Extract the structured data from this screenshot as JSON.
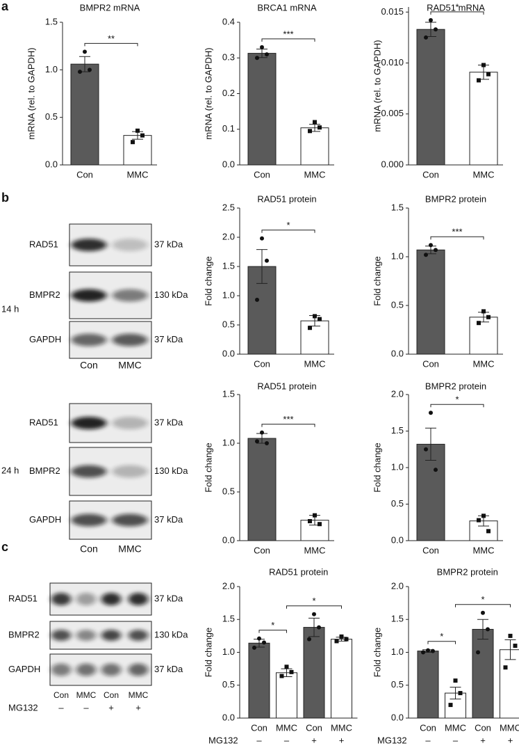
{
  "panel_labels": [
    "a",
    "b",
    "c"
  ],
  "blots": [
    {
      "time": "14 h",
      "lanes": [
        "Con",
        "MMC"
      ],
      "rows": [
        {
          "protein": "RAD51",
          "size": "37 kDa"
        },
        {
          "protein": "BMPR2",
          "size": "130 kDa"
        },
        {
          "protein": "GAPDH",
          "size": "37 kDa"
        }
      ]
    },
    {
      "time": "24 h",
      "lanes": [
        "Con",
        "MMC"
      ],
      "rows": [
        {
          "protein": "RAD51",
          "size": "37 kDa"
        },
        {
          "protein": "BMPR2",
          "size": "130 kDa"
        },
        {
          "protein": "GAPDH",
          "size": "37 kDa"
        }
      ]
    },
    {
      "lanes": [
        "Con",
        "MMC",
        "Con",
        "MMC"
      ],
      "treatment": {
        "label": "MG132",
        "values": [
          "–",
          "–",
          "+",
          "+"
        ]
      },
      "rows": [
        {
          "protein": "RAD51",
          "size": "37 kDa"
        },
        {
          "protein": "BMPR2",
          "size": "130 kDa"
        },
        {
          "protein": "GAPDH",
          "size": "37 kDa"
        }
      ]
    }
  ],
  "chart_data": [
    {
      "type": "bar",
      "title": "BMPR2 mRNA",
      "ylabel": "mRNA (rel. to GAPDH)",
      "categories": [
        "Con",
        "MMC"
      ],
      "values": [
        1.06,
        0.31
      ],
      "errors": [
        0.08,
        0.04
      ],
      "points": [
        [
          0.98,
          1.19,
          1.0
        ],
        [
          0.24,
          0.36,
          0.31
        ]
      ],
      "colors": [
        "#5a5a5a",
        "#ffffff"
      ],
      "markers": [
        "circle",
        "square"
      ],
      "ylim": [
        0,
        1.5
      ],
      "yticks": [
        {
          "value": 0,
          "label": "0.0"
        },
        0.5,
        {
          "value": 1,
          "label": "1.0"
        },
        1.5
      ],
      "significance": [
        {
          "from": 0,
          "to": 1,
          "label": "**"
        }
      ]
    },
    {
      "type": "bar",
      "title": "BRCA1 mRNA",
      "ylabel": "mRNA (rel. to GAPDH)",
      "categories": [
        "Con",
        "MMC"
      ],
      "values": [
        0.313,
        0.104
      ],
      "errors": [
        0.012,
        0.01
      ],
      "points": [
        [
          0.3,
          0.33,
          0.31
        ],
        [
          0.095,
          0.12,
          0.105
        ]
      ],
      "colors": [
        "#5a5a5a",
        "#ffffff"
      ],
      "markers": [
        "circle",
        "square"
      ],
      "ylim": [
        0,
        0.4
      ],
      "yticks": [
        {
          "value": 0,
          "label": "0.0"
        },
        0.1,
        0.2,
        0.3,
        0.4
      ],
      "significance": [
        {
          "from": 0,
          "to": 1,
          "label": "***"
        }
      ]
    },
    {
      "type": "bar",
      "title": "RAD51 mRNA",
      "ylabel": "mRNA (rel. to GAPDH)",
      "categories": [
        "Con",
        "MMC"
      ],
      "values": [
        0.0133,
        0.0091
      ],
      "errors": [
        0.0007,
        0.0007
      ],
      "points": [
        [
          0.0125,
          0.0142,
          0.0133
        ],
        [
          0.0083,
          0.0098,
          0.0089
        ]
      ],
      "colors": [
        "#5a5a5a",
        "#ffffff"
      ],
      "markers": [
        "circle",
        "square"
      ],
      "ylim": [
        0,
        0.0155
      ],
      "yticks": [
        {
          "value": 0,
          "label": "0.000"
        },
        {
          "value": 0.005,
          "label": "0.005"
        },
        {
          "value": 0.01,
          "label": "0.010"
        },
        {
          "value": 0.015,
          "label": "0.015"
        }
      ],
      "significance": [
        {
          "from": 0,
          "to": 1,
          "label": "*"
        }
      ]
    },
    {
      "type": "bar",
      "title": "RAD51 protein",
      "ylabel": "Fold change",
      "categories": [
        "Con",
        "MMC"
      ],
      "values": [
        1.5,
        0.57
      ],
      "errors": [
        0.29,
        0.09
      ],
      "points": [
        [
          0.93,
          1.98,
          1.6
        ],
        [
          0.45,
          0.65,
          0.6
        ]
      ],
      "colors": [
        "#5a5a5a",
        "#ffffff"
      ],
      "markers": [
        "circle",
        "square"
      ],
      "ylim": [
        0,
        2.5
      ],
      "yticks": [
        {
          "value": 0,
          "label": "0.0"
        },
        0.5,
        {
          "value": 1,
          "label": "1.0"
        },
        1.5,
        {
          "value": 2,
          "label": "2.0"
        },
        2.5
      ],
      "significance": [
        {
          "from": 0,
          "to": 1,
          "label": "*"
        }
      ]
    },
    {
      "type": "bar",
      "title": "BMPR2 protein",
      "ylabel": "Fold change",
      "categories": [
        "Con",
        "MMC"
      ],
      "values": [
        1.07,
        0.38
      ],
      "errors": [
        0.04,
        0.05
      ],
      "points": [
        [
          1.02,
          1.12,
          1.07
        ],
        [
          0.32,
          0.44,
          0.38
        ]
      ],
      "colors": [
        "#5a5a5a",
        "#ffffff"
      ],
      "markers": [
        "circle",
        "square"
      ],
      "ylim": [
        0,
        1.5
      ],
      "yticks": [
        {
          "value": 0,
          "label": "0.0"
        },
        0.5,
        {
          "value": 1,
          "label": "1.0"
        },
        1.5
      ],
      "significance": [
        {
          "from": 0,
          "to": 1,
          "label": "***"
        }
      ]
    },
    {
      "type": "bar",
      "title": "RAD51 protein",
      "ylabel": "Fold change",
      "categories": [
        "Con",
        "MMC"
      ],
      "values": [
        1.05,
        0.21
      ],
      "errors": [
        0.05,
        0.05
      ],
      "points": [
        [
          1.02,
          1.11,
          1.0
        ],
        [
          0.2,
          0.26,
          0.17
        ]
      ],
      "colors": [
        "#5a5a5a",
        "#ffffff"
      ],
      "markers": [
        "circle",
        "square"
      ],
      "ylim": [
        0,
        1.5
      ],
      "yticks": [
        {
          "value": 0,
          "label": "0.0"
        },
        0.5,
        {
          "value": 1,
          "label": "1.0"
        },
        1.5
      ],
      "significance": [
        {
          "from": 0,
          "to": 1,
          "label": "***"
        }
      ]
    },
    {
      "type": "bar",
      "title": "BMPR2 protein",
      "ylabel": "Fold change",
      "categories": [
        "Con",
        "MMC"
      ],
      "values": [
        1.32,
        0.27
      ],
      "errors": [
        0.22,
        0.07
      ],
      "points": [
        [
          1.25,
          1.75,
          0.97
        ],
        [
          0.28,
          0.34,
          0.13
        ]
      ],
      "colors": [
        "#5a5a5a",
        "#ffffff"
      ],
      "markers": [
        "circle",
        "square"
      ],
      "ylim": [
        0,
        2
      ],
      "yticks": [
        {
          "value": 0,
          "label": "0.0"
        },
        0.5,
        {
          "value": 1,
          "label": "1.0"
        },
        1.5,
        {
          "value": 2,
          "label": "2.0"
        }
      ],
      "significance": [
        {
          "from": 0,
          "to": 1,
          "label": "*"
        }
      ]
    },
    {
      "type": "bar",
      "title": "RAD51 protein",
      "ylabel": "Fold change",
      "categories": [
        "Con",
        "MMC",
        "Con",
        "MMC"
      ],
      "values": [
        1.14,
        0.69,
        1.38,
        1.2
      ],
      "errors": [
        0.06,
        0.06,
        0.14,
        0.03
      ],
      "points": [
        [
          1.07,
          1.21,
          1.15
        ],
        [
          0.64,
          0.78,
          0.7
        ],
        [
          1.2,
          1.58,
          1.38
        ],
        [
          1.17,
          1.24,
          1.2
        ]
      ],
      "colors": [
        "#5a5a5a",
        "#ffffff",
        "#5a5a5a",
        "#ffffff"
      ],
      "markers": [
        "circle",
        "square",
        "circle",
        "square"
      ],
      "ylim": [
        0,
        2
      ],
      "yticks": [
        {
          "value": 0,
          "label": "0.0"
        },
        0.5,
        {
          "value": 1,
          "label": "1.0"
        },
        1.5,
        {
          "value": 2,
          "label": "2.0"
        }
      ],
      "significance": [
        {
          "from": 0,
          "to": 1,
          "label": "*"
        },
        {
          "from": 1,
          "to": 3,
          "label": "*"
        }
      ],
      "treatment": {
        "label": "MG132",
        "values": [
          "–",
          "–",
          "+",
          "+"
        ]
      }
    },
    {
      "type": "bar",
      "title": "BMPR2 protein",
      "ylabel": "Fold change",
      "categories": [
        "Con",
        "MMC",
        "Con",
        "MMC"
      ],
      "values": [
        1.02,
        0.38,
        1.35,
        1.04
      ],
      "errors": [
        0.02,
        0.09,
        0.15,
        0.15
      ],
      "points": [
        [
          1.0,
          1.03,
          1.02
        ],
        [
          0.2,
          0.57,
          0.38
        ],
        [
          1.0,
          1.6,
          1.35
        ],
        [
          0.77,
          1.25,
          1.1
        ]
      ],
      "colors": [
        "#5a5a5a",
        "#ffffff",
        "#5a5a5a",
        "#ffffff"
      ],
      "markers": [
        "circle",
        "square",
        "circle",
        "square"
      ],
      "ylim": [
        0,
        2
      ],
      "yticks": [
        {
          "value": 0,
          "label": "0.0"
        },
        0.5,
        {
          "value": 1,
          "label": "1.0"
        },
        1.5,
        {
          "value": 2,
          "label": "2.0"
        }
      ],
      "significance": [
        {
          "from": 0,
          "to": 1,
          "label": "*"
        },
        {
          "from": 1,
          "to": 3,
          "label": "*"
        }
      ],
      "treatment": {
        "label": "MG132",
        "values": [
          "–",
          "–",
          "+",
          "+"
        ]
      }
    }
  ]
}
